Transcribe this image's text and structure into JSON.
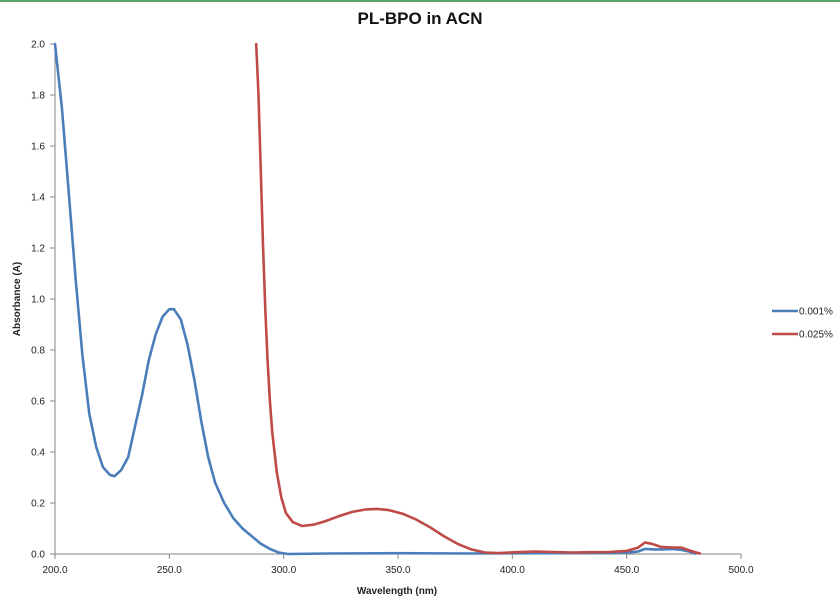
{
  "chart_data": {
    "type": "line",
    "title": "PL-BPO in ACN",
    "xlabel": "Wavelength (nm)",
    "ylabel": "Absorbance (A)",
    "xlim": [
      200,
      500
    ],
    "ylim": [
      0,
      2.0
    ],
    "x_ticks": [
      "200.0",
      "250.0",
      "300.0",
      "350.0",
      "400.0",
      "450.0",
      "500.0"
    ],
    "y_ticks": [
      "0.0",
      "0.2",
      "0.4",
      "0.6",
      "0.8",
      "1.0",
      "1.2",
      "1.4",
      "1.6",
      "1.8",
      "2.0"
    ],
    "grid": false,
    "legend_position": "right",
    "series": [
      {
        "name": "0.001%",
        "color": "#4a7ebb",
        "points": [
          [
            200,
            2.0
          ],
          [
            203,
            1.75
          ],
          [
            206,
            1.42
          ],
          [
            209,
            1.08
          ],
          [
            212,
            0.78
          ],
          [
            215,
            0.55
          ],
          [
            218,
            0.42
          ],
          [
            221,
            0.34
          ],
          [
            224,
            0.31
          ],
          [
            226,
            0.305
          ],
          [
            229,
            0.33
          ],
          [
            232,
            0.38
          ],
          [
            235,
            0.5
          ],
          [
            238,
            0.62
          ],
          [
            241,
            0.76
          ],
          [
            244,
            0.86
          ],
          [
            247,
            0.93
          ],
          [
            250,
            0.96
          ],
          [
            252,
            0.96
          ],
          [
            255,
            0.92
          ],
          [
            258,
            0.82
          ],
          [
            261,
            0.68
          ],
          [
            264,
            0.52
          ],
          [
            267,
            0.38
          ],
          [
            270,
            0.28
          ],
          [
            274,
            0.2
          ],
          [
            278,
            0.14
          ],
          [
            282,
            0.1
          ],
          [
            286,
            0.07
          ],
          [
            290,
            0.04
          ],
          [
            294,
            0.02
          ],
          [
            298,
            0.005
          ],
          [
            302,
            0.0
          ],
          [
            320,
            0.002
          ],
          [
            350,
            0.003
          ],
          [
            380,
            0.002
          ],
          [
            420,
            0.003
          ],
          [
            450,
            0.005
          ],
          [
            455,
            0.01
          ],
          [
            458,
            0.02
          ],
          [
            462,
            0.018
          ],
          [
            466,
            0.018
          ],
          [
            470,
            0.02
          ],
          [
            474,
            0.016
          ],
          [
            478,
            0.008
          ],
          [
            480,
            0.002
          ]
        ]
      },
      {
        "name": "0.025%",
        "color": "#be4b48",
        "points": [
          [
            288,
            2.0
          ],
          [
            289,
            1.8
          ],
          [
            290,
            1.5
          ],
          [
            291,
            1.2
          ],
          [
            292,
            0.95
          ],
          [
            293,
            0.75
          ],
          [
            294,
            0.6
          ],
          [
            295,
            0.48
          ],
          [
            297,
            0.32
          ],
          [
            299,
            0.22
          ],
          [
            301,
            0.16
          ],
          [
            304,
            0.125
          ],
          [
            308,
            0.11
          ],
          [
            313,
            0.115
          ],
          [
            318,
            0.128
          ],
          [
            324,
            0.148
          ],
          [
            330,
            0.165
          ],
          [
            336,
            0.175
          ],
          [
            341,
            0.177
          ],
          [
            346,
            0.172
          ],
          [
            352,
            0.158
          ],
          [
            358,
            0.135
          ],
          [
            364,
            0.105
          ],
          [
            370,
            0.07
          ],
          [
            376,
            0.04
          ],
          [
            382,
            0.018
          ],
          [
            388,
            0.006
          ],
          [
            394,
            0.004
          ],
          [
            402,
            0.007
          ],
          [
            410,
            0.01
          ],
          [
            418,
            0.008
          ],
          [
            426,
            0.006
          ],
          [
            434,
            0.007
          ],
          [
            442,
            0.008
          ],
          [
            450,
            0.012
          ],
          [
            455,
            0.025
          ],
          [
            458,
            0.045
          ],
          [
            461,
            0.04
          ],
          [
            465,
            0.028
          ],
          [
            470,
            0.025
          ],
          [
            474,
            0.025
          ],
          [
            478,
            0.012
          ],
          [
            482,
            0.002
          ]
        ]
      }
    ]
  }
}
